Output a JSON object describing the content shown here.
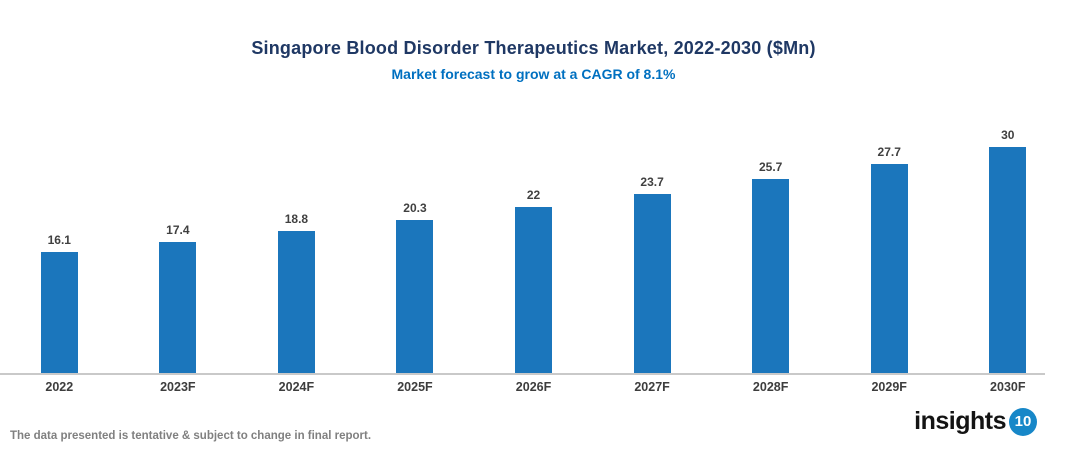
{
  "title": "Singapore Blood Disorder Therapeutics Market, 2022-2030 ($Mn)",
  "subtitle": "Market forecast to grow at a CAGR of 8.1%",
  "footer": {
    "disclaimer": "The data presented is tentative & subject to change in final report."
  },
  "logo": {
    "text": "insights",
    "badge": "10"
  },
  "colors": {
    "bar": "#1B76BC",
    "title": "#1F3864",
    "subtitle": "#0070C0",
    "axis_line": "#C9C9C9",
    "data_label": "#404040",
    "category_label": "#3D3D3D",
    "disclaimer": "#808080",
    "logo_badge_bg": "#1787C8",
    "logo_badge_text": "#FFFFFF"
  },
  "chart_data": {
    "type": "bar",
    "title": "Singapore Blood Disorder Therapeutics Market, 2022-2030 ($Mn)",
    "subtitle": "Market forecast to grow at a CAGR of 8.1%",
    "categories": [
      "2022",
      "2023F",
      "2024F",
      "2025F",
      "2026F",
      "2027F",
      "2028F",
      "2029F",
      "2030F"
    ],
    "values": [
      16.1,
      17.4,
      18.8,
      20.3,
      22,
      23.7,
      25.7,
      27.7,
      30
    ],
    "data_labels": [
      "16.1",
      "17.4",
      "18.8",
      "20.3",
      "22",
      "23.7",
      "25.7",
      "27.7",
      "30"
    ],
    "xlabel": "",
    "ylabel": "",
    "ylim": [
      0,
      30
    ],
    "grid": false,
    "legend": null,
    "y_axis_visible": false,
    "data_labels_shown": true
  }
}
